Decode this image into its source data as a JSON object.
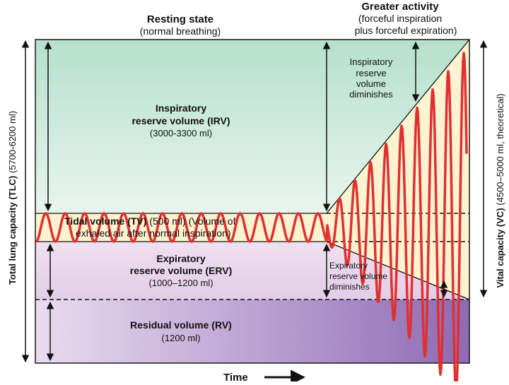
{
  "header": {
    "resting_title": "Resting state",
    "resting_sub": "(normal breathing)",
    "active_title": "Greater activity",
    "active_sub1": "(forceful inspiration",
    "active_sub2": "plus forceful expiration)"
  },
  "irv": {
    "line1": "Inspiratory",
    "line2": "reserve volume (IRV)",
    "range": "(3000-3300 ml)"
  },
  "irv_diminishes": [
    "Inspiratory",
    "reserve",
    "volume",
    "diminishes"
  ],
  "tidal": {
    "bold": "Tidal volume (TV)",
    "rest1": "(500 ml) (Volume of",
    "line2": "exhaled air after normal inspiration)"
  },
  "erv": {
    "line1": "Expiratory",
    "line2": "reserve volume (ERV)",
    "range": "(1000–1200 ml)"
  },
  "erv_diminishes": [
    "Expiratory",
    "reserve volume",
    "diminishes"
  ],
  "rv": {
    "line1": "Residual volume (RV)",
    "range": "(1200 ml)"
  },
  "tlc": {
    "bold": "Total lung capacity (TLC)",
    "range": "(5700-6200 ml)"
  },
  "vc": {
    "bold": "Vital capacity (VC)",
    "range": "(4500–5000 ml, theoretical)"
  },
  "time_label": "Time",
  "colors": {
    "irv": "#cfe9dc",
    "tidal": "#fdf3d0",
    "erv": "#e7d5ea",
    "rv": "#a98cc4",
    "trace": "#e03030",
    "frame": "#1a1a1a"
  }
}
